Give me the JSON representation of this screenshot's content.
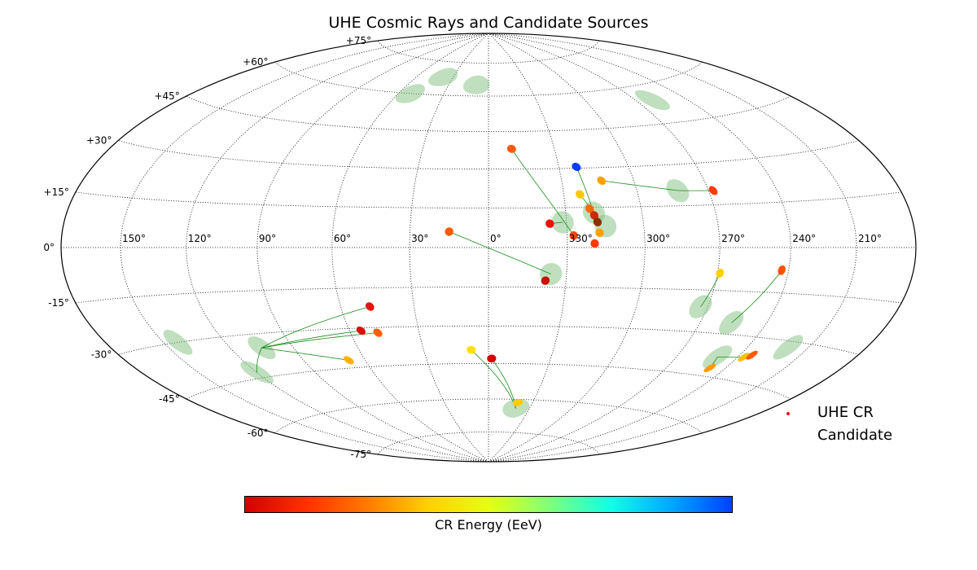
{
  "chart_data": {
    "type": "scatter",
    "projection": "hammer-aitoff",
    "coordinates": "galactic",
    "title": "UHE Cosmic Rays and Candidate Sources",
    "longitude_tick_labels": [
      "150°",
      "120°",
      "90°",
      "60°",
      "30°",
      "0°",
      "330°",
      "300°",
      "270°",
      "240°",
      "210°"
    ],
    "longitude_tick_values": [
      150,
      120,
      90,
      60,
      30,
      0,
      -30,
      -60,
      -90,
      -120,
      -150
    ],
    "latitude_tick_labels": [
      "+75°",
      "+60°",
      "+45°",
      "+30°",
      "+15°",
      "0°",
      "-15°",
      "-30°",
      "-45°",
      "-60°",
      "-75°"
    ],
    "latitude_tick_values": [
      75,
      60,
      45,
      30,
      15,
      0,
      -15,
      -30,
      -45,
      -60,
      -75
    ],
    "grid": true,
    "legend_position": "bottom-right",
    "legend": [
      {
        "label": "UHE CR",
        "color": "#e81010"
      },
      {
        "label": "Candidate",
        "color": "#7fbf7f"
      }
    ],
    "colorbar": {
      "label": "CR Energy (EeV)",
      "colormap": "jet_r",
      "stops": [
        "#d40000",
        "#ff3000",
        "#ff7a00",
        "#ffd000",
        "#e6ff10",
        "#80ff7a",
        "#10ffe6",
        "#00a8ff",
        "#0040ff"
      ]
    },
    "cosmic_rays": [
      {
        "l": -10.5,
        "b": 38,
        "color": "#ff5a00"
      },
      {
        "l": -37.5,
        "b": 30.5,
        "color": "#0a3cff"
      },
      {
        "l": -46.5,
        "b": 25,
        "color": "#ffa000"
      },
      {
        "l": -36.5,
        "b": 20,
        "color": "#ffc800"
      },
      {
        "l": -92,
        "b": 20,
        "color": "#ff3a00"
      },
      {
        "l": -39.5,
        "b": 14.5,
        "color": "#ff6a00"
      },
      {
        "l": -41,
        "b": 12,
        "color": "#cc2a00"
      },
      {
        "l": -23.5,
        "b": 9,
        "color": "#f01000"
      },
      {
        "l": -42,
        "b": 9.5,
        "color": "#8a3000"
      },
      {
        "l": -42.5,
        "b": 5.5,
        "color": "#ffa000"
      },
      {
        "l": -32.5,
        "b": 4.5,
        "color": "#ff4a00"
      },
      {
        "l": -40.5,
        "b": 1.5,
        "color": "#ff3a00"
      },
      {
        "l": 15,
        "b": 6,
        "color": "#ff5a00"
      },
      {
        "l": -22,
        "b": -12.5,
        "color": "#c81000"
      },
      {
        "l": -91,
        "b": -9,
        "color": "#ffd000"
      },
      {
        "l": -117,
        "b": -7.5,
        "color": "#ff5000"
      },
      {
        "l": 48,
        "b": -22,
        "color": "#e81010"
      },
      {
        "l": 55,
        "b": -31,
        "color": "#d81010"
      },
      {
        "l": 48,
        "b": -32,
        "color": "#ff6000"
      },
      {
        "l": 8,
        "b": -39.5,
        "color": "#ffe000"
      },
      {
        "l": -1.5,
        "b": -43,
        "color": "#d80000"
      },
      {
        "l": 68,
        "b": -42,
        "color": "#ffb000"
      },
      {
        "l": -20,
        "b": -61.5,
        "color": "#ffcc00"
      },
      {
        "l": -123,
        "b": -37,
        "color": "#ffc000"
      },
      {
        "l": -126,
        "b": -36,
        "color": "#ff5a00"
      },
      {
        "l": -112,
        "b": -42,
        "color": "#ff9a00"
      }
    ],
    "candidate_sources": [
      {
        "l": 38,
        "b": 68
      },
      {
        "l": 52,
        "b": 60
      },
      {
        "l": 9,
        "b": 65
      },
      {
        "l": -100,
        "b": 54
      },
      {
        "l": -77,
        "b": 20.5
      },
      {
        "l": -41,
        "b": 13
      },
      {
        "l": -28.5,
        "b": 9.5
      },
      {
        "l": -45,
        "b": 8
      },
      {
        "l": -24,
        "b": -10
      },
      {
        "l": -87,
        "b": -21
      },
      {
        "l": -104,
        "b": -26
      },
      {
        "l": -110,
        "b": -38
      },
      {
        "l": -140,
        "b": -32
      },
      {
        "l": 143,
        "b": -30
      },
      {
        "l": 105,
        "b": -35
      },
      {
        "l": 120,
        "b": -43
      },
      {
        "l": -20,
        "b": -64
      }
    ],
    "association_lines": [
      [
        [
          -10.5,
          38
        ],
        [
          -32.5,
          4.5
        ]
      ],
      [
        [
          -37.5,
          30.5
        ],
        [
          -41,
          12
        ]
      ],
      [
        [
          -46.5,
          25
        ],
        [
          -77,
          20.5
        ],
        [
          -92,
          20
        ]
      ],
      [
        [
          -36.5,
          20
        ],
        [
          -41,
          13
        ]
      ],
      [
        [
          -23.5,
          9
        ],
        [
          -28.5,
          9.5
        ]
      ],
      [
        [
          15,
          6
        ],
        [
          -24,
          -10
        ]
      ],
      [
        [
          -91,
          -9
        ],
        [
          -87,
          -21
        ]
      ],
      [
        [
          -117,
          -7.5
        ],
        [
          -104,
          -26
        ]
      ],
      [
        [
          48,
          -22
        ],
        [
          105,
          -35
        ]
      ],
      [
        [
          55,
          -31
        ],
        [
          105,
          -35
        ]
      ],
      [
        [
          48,
          -32
        ],
        [
          105,
          -35
        ]
      ],
      [
        [
          68,
          -42
        ],
        [
          105,
          -35
        ]
      ],
      [
        [
          120,
          -43
        ],
        [
          105,
          -35
        ]
      ],
      [
        [
          8,
          -39.5
        ],
        [
          -20,
          -64
        ]
      ],
      [
        [
          -1.5,
          -43
        ],
        [
          -20,
          -64
        ]
      ],
      [
        [
          -123,
          -37
        ],
        [
          -110,
          -38
        ]
      ],
      [
        [
          -112,
          -42
        ],
        [
          -110,
          -38
        ]
      ]
    ]
  }
}
